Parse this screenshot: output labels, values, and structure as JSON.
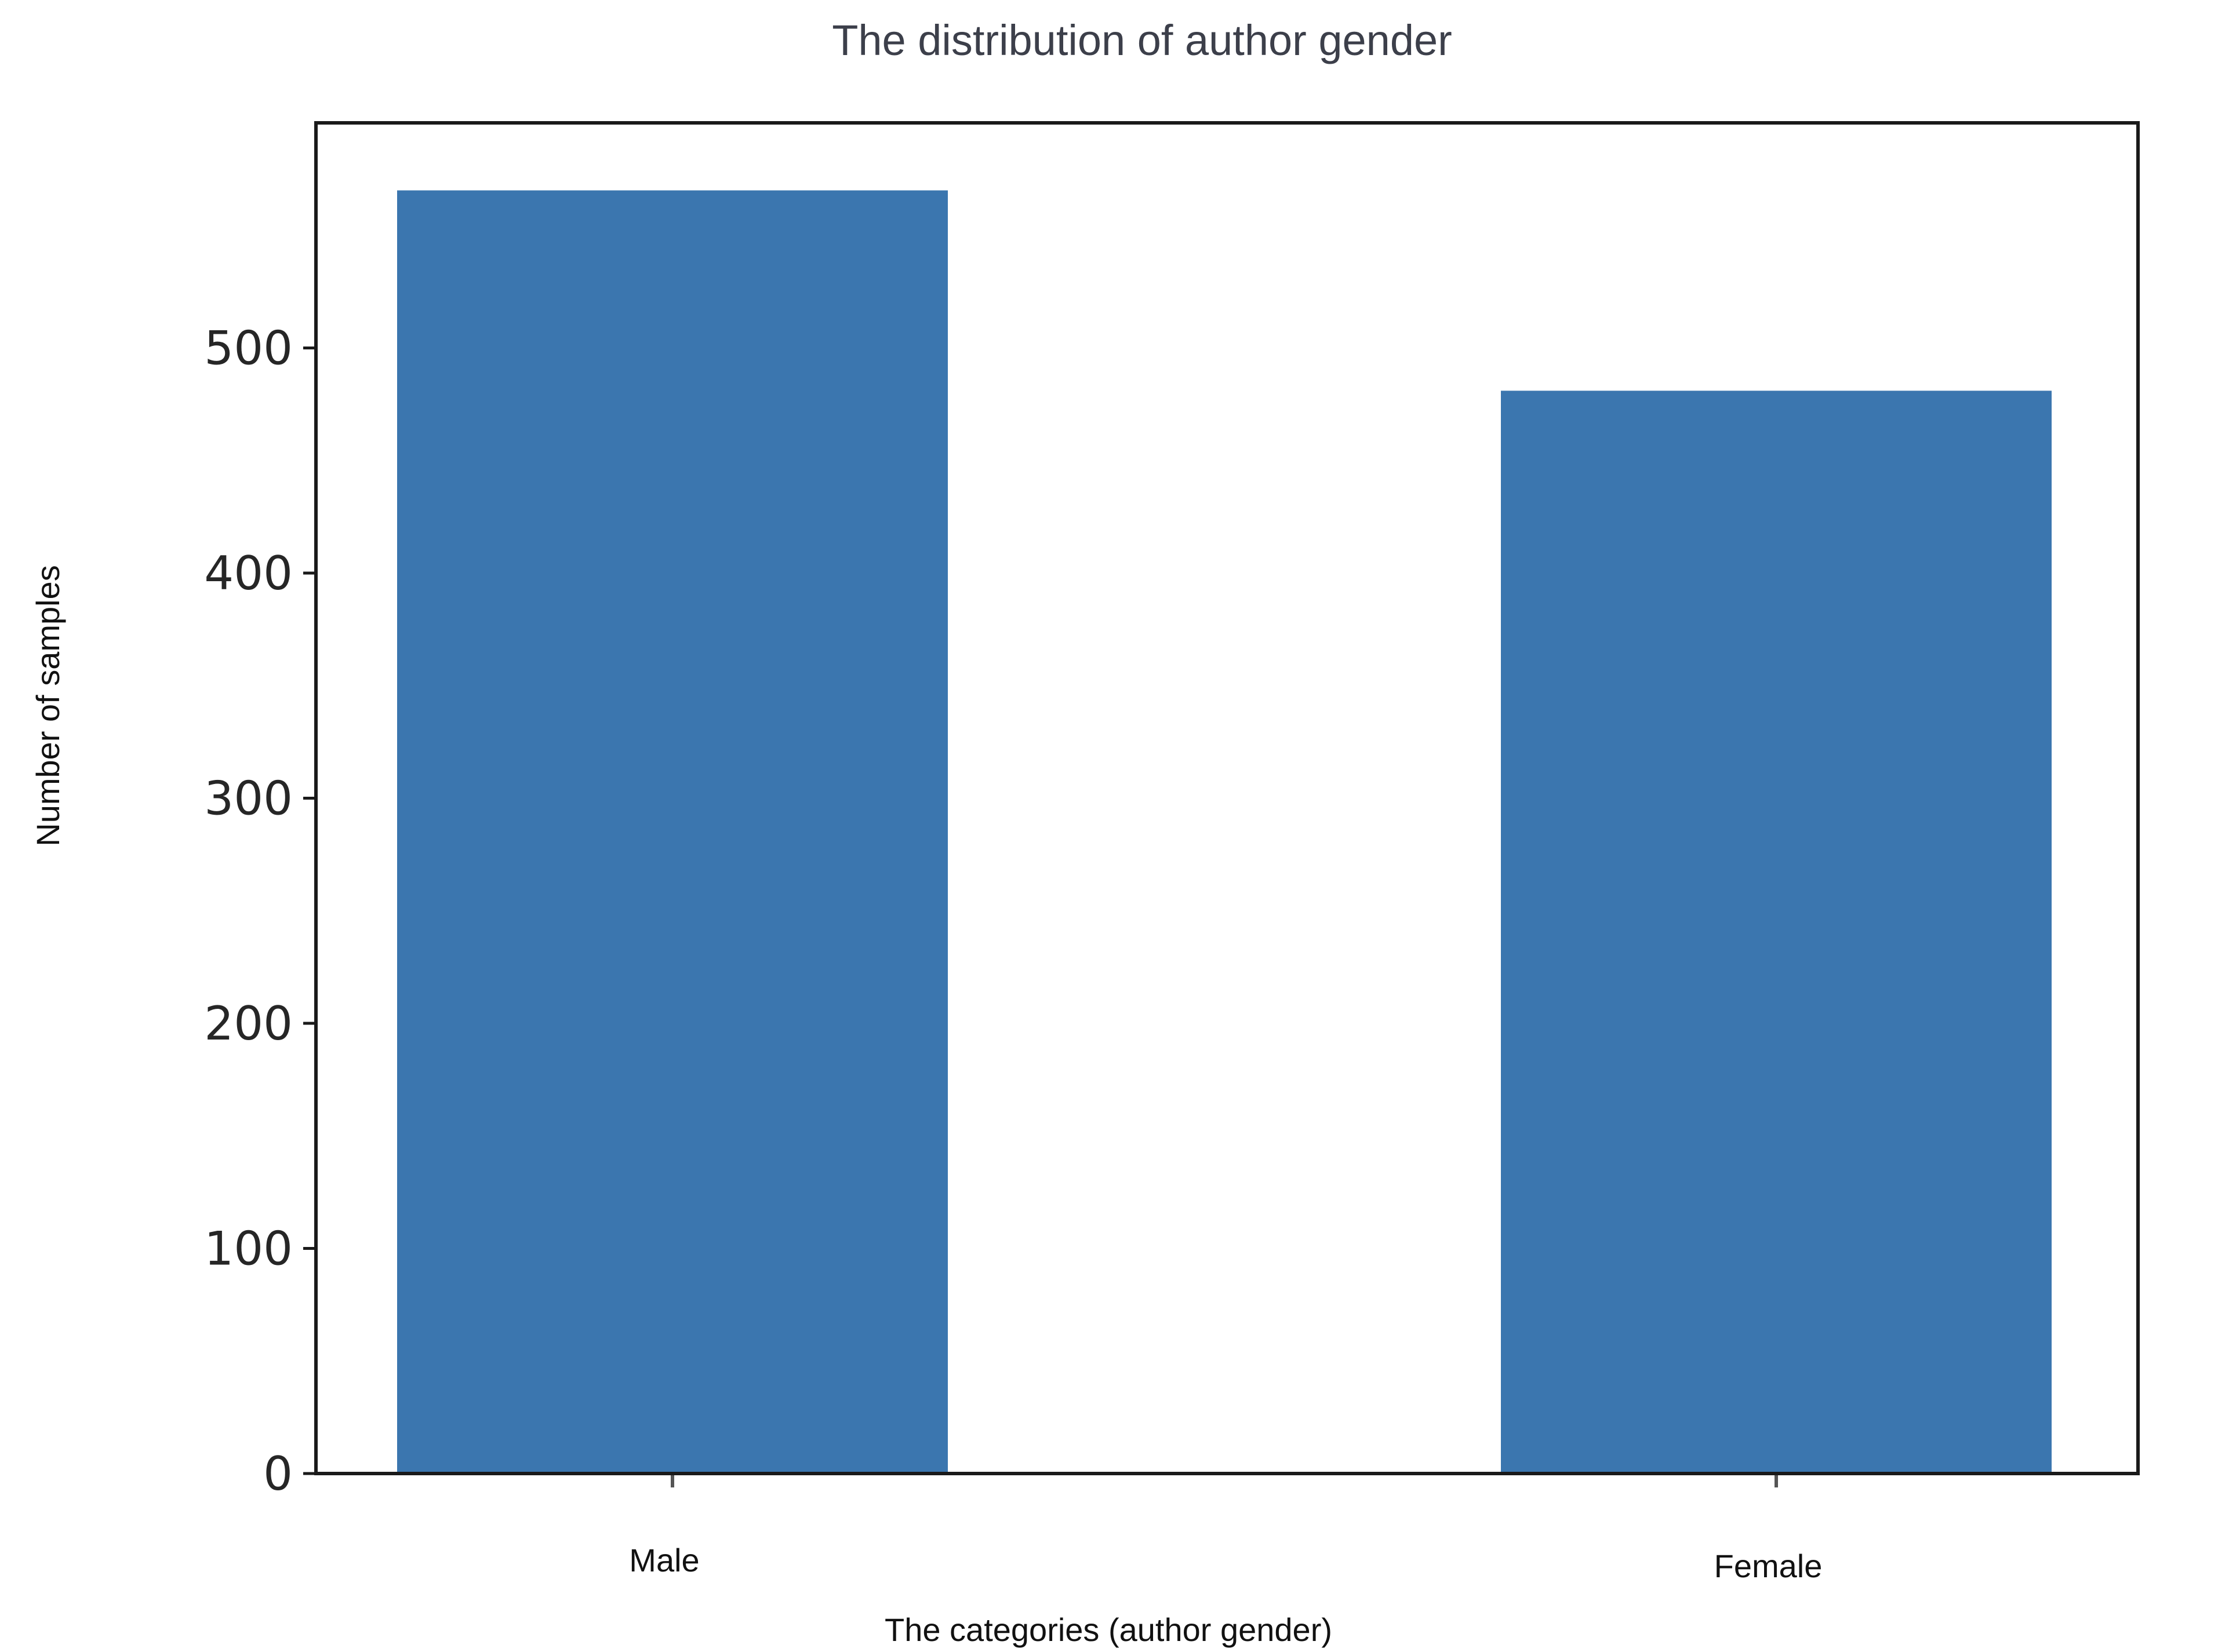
{
  "chart_data": {
    "type": "bar",
    "title": "The distribution of author gender",
    "xlabel": "The categories (author gender)",
    "ylabel": "Number of samples",
    "categories": [
      "Male",
      "Female"
    ],
    "values": [
      570,
      481
    ],
    "ylim": [
      0,
      600
    ],
    "yticks": [
      "0",
      "100",
      "200",
      "300",
      "400",
      "500"
    ],
    "grid": false,
    "legend": "none",
    "bar_color": "#3b76af",
    "frame_color": "#1a1a1a"
  }
}
